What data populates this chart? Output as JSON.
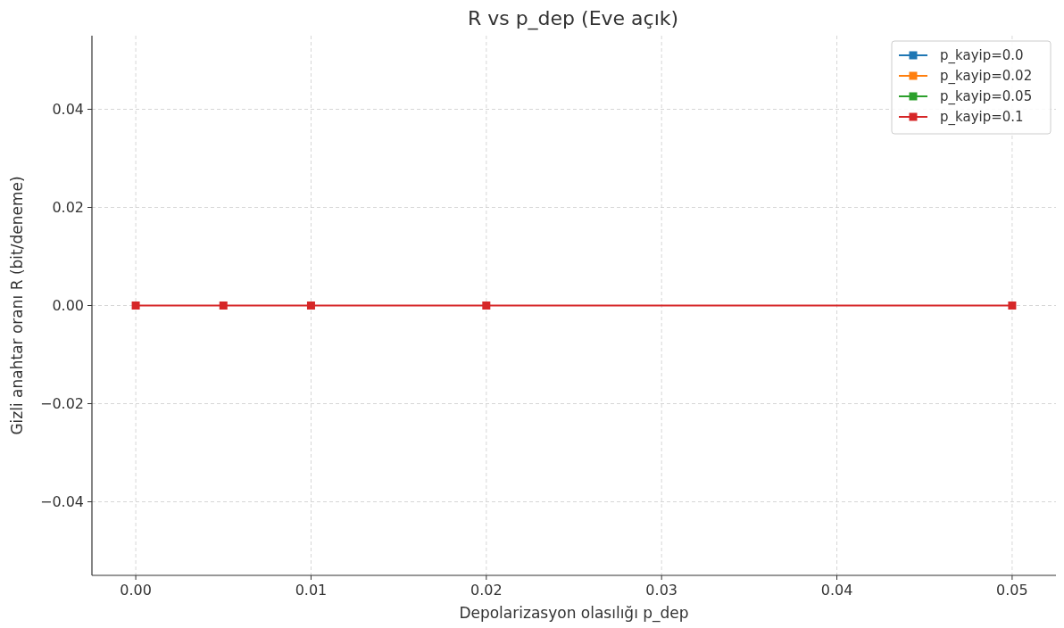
{
  "chart_data": {
    "type": "line",
    "title": "R vs p_dep (Eve açık)",
    "xlabel": "Depolarizasyon olasılığı p_dep",
    "ylabel": "Gizli anahtar oranı R (bit/deneme)",
    "x": [
      0,
      0.005,
      0.01,
      0.02,
      0.05
    ],
    "series": [
      {
        "name": "p_kayip=0.0",
        "color": "#1f77b4",
        "values": [
          null,
          null,
          null,
          null,
          null
        ]
      },
      {
        "name": "p_kayip=0.02",
        "color": "#ff7f0e",
        "values": [
          null,
          null,
          null,
          null,
          null
        ]
      },
      {
        "name": "p_kayip=0.05",
        "color": "#2ca02c",
        "values": [
          null,
          null,
          null,
          null,
          null
        ]
      },
      {
        "name": "p_kayip=0.1",
        "color": "#d62728",
        "values": [
          0,
          0,
          0,
          0,
          0
        ]
      }
    ],
    "xlim": [
      -0.0025,
      0.0525
    ],
    "xticks": [
      {
        "value": 0,
        "label": "0.00"
      },
      {
        "value": 0.01,
        "label": "0.01"
      },
      {
        "value": 0.02,
        "label": "0.02"
      },
      {
        "value": 0.03,
        "label": "0.03"
      },
      {
        "value": 0.04,
        "label": "0.04"
      },
      {
        "value": 0.05,
        "label": "0.05"
      }
    ],
    "ylim": [
      -0.055,
      0.055
    ],
    "yticks": [
      {
        "value": -0.04,
        "label": "−0.04"
      },
      {
        "value": -0.02,
        "label": "−0.02"
      },
      {
        "value": 0,
        "label": "0.00"
      },
      {
        "value": 0.02,
        "label": "0.02"
      },
      {
        "value": 0.04,
        "label": "0.04"
      }
    ],
    "grid": true,
    "legend": "top right",
    "marker": "square",
    "line_style": "solid"
  }
}
